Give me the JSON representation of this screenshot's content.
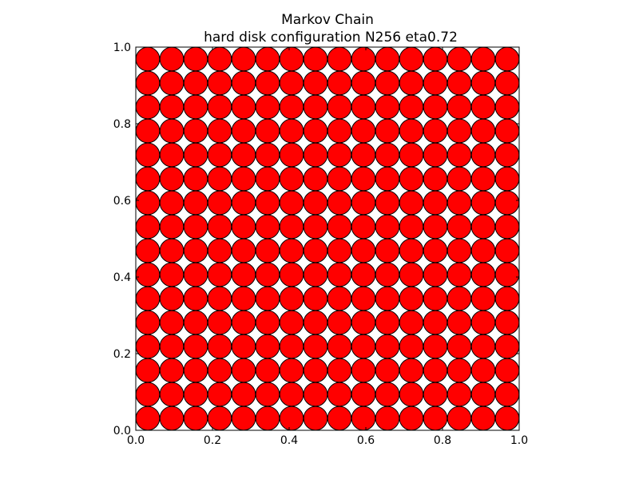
{
  "chart_data": {
    "type": "scatter",
    "title": "Markov Chain",
    "subtitle": "hard disk configuration N256 eta0.72",
    "xlim": [
      0.0,
      1.0
    ],
    "ylim": [
      0.0,
      1.0
    ],
    "x_ticks": [
      "0.0",
      "0.2",
      "0.4",
      "0.6",
      "0.8",
      "1.0"
    ],
    "y_ticks": [
      "0.0",
      "0.2",
      "0.4",
      "0.6",
      "0.8",
      "1.0"
    ],
    "grid": false,
    "disk_radius": 0.03,
    "grid_count": 16,
    "grid_spacing": 0.0625,
    "grid_start": 0.03125,
    "marker_fill": "#ff0000",
    "marker_edge": "#000000"
  }
}
